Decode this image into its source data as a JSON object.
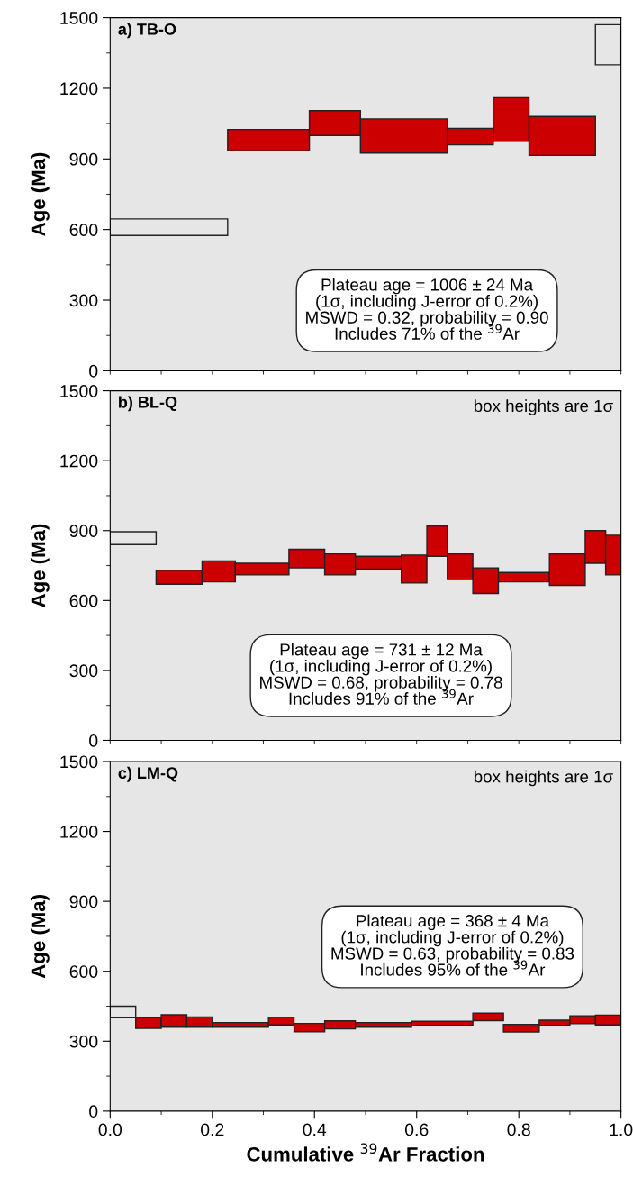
{
  "chart_data": [
    {
      "type": "histogram",
      "ylabel": "Age (Ma)",
      "annotations": [
        "a) TB-O",
        "Plateau age = 1006 ± 24 Ma\n(1σ, including J-error of 0.2%)\nMSWD = 0.32, probability = 0.90\nIncludes 71% of the $^{39}$Ar"
      ],
      "bins": [
        0,
        0.23,
        0.39,
        0.49,
        0.66,
        0.75,
        0.82,
        0.95,
        1.0
      ],
      "base": [
        575,
        935,
        1000,
        925,
        960,
        975,
        915,
        1300
      ],
      "values": [
        70,
        90,
        105,
        145,
        70,
        185,
        165,
        170
      ],
      "colors": [
        "#e6e6e6",
        "#cc0000",
        "#cc0000",
        "#cc0000",
        "#cc0000",
        "#cc0000",
        "#cc0000",
        "#e6e6e6"
      ],
      "xlim": [
        0,
        1.0
      ],
      "ylim": [
        0,
        1500
      ],
      "tick_labels": "y",
      "xticks": [
        {
          "value": 0,
          "label": null
        },
        {
          "value": 0.1,
          "label": null
        },
        {
          "value": 0.2,
          "label": null
        },
        {
          "value": 0.3,
          "label": null
        },
        {
          "value": 0.4,
          "label": null
        },
        {
          "value": 0.5,
          "label": null
        },
        {
          "value": 0.6,
          "label": null
        },
        {
          "value": 0.7,
          "label": null
        },
        {
          "value": 0.8,
          "label": null
        },
        {
          "value": 0.9,
          "label": null
        },
        {
          "value": 1.0,
          "label": null
        }
      ],
      "yticks": [
        0,
        {
          "value": 150,
          "label": null
        },
        300,
        {
          "value": 450,
          "label": null
        },
        600,
        {
          "value": 750,
          "label": null
        },
        900,
        {
          "value": 1050,
          "label": null
        },
        1200,
        {
          "value": 1350,
          "label": null
        },
        1500
      ]
    },
    {
      "type": "histogram",
      "ylabel": "Age (Ma)",
      "annotations": [
        "b) BL-Q",
        "box heights are 1σ",
        "Plateau age = 731 ± 12 Ma\n(1σ, including J-error of 0.2%)\nMSWD = 0.68, probability = 0.78\nIncludes 91% of the $^{39}$Ar"
      ],
      "bins": [
        0,
        0.09,
        0.18,
        0.245,
        0.35,
        0.42,
        0.48,
        0.57,
        0.62,
        0.66,
        0.71,
        0.76,
        0.86,
        0.93,
        0.97,
        1.0
      ],
      "base": [
        840,
        670,
        680,
        710,
        740,
        710,
        735,
        675,
        790,
        690,
        630,
        680,
        665,
        760,
        710
      ],
      "values": [
        55,
        60,
        90,
        50,
        80,
        90,
        55,
        120,
        130,
        110,
        110,
        40,
        135,
        140,
        170
      ],
      "colors": [
        "#e6e6e6",
        "#cc0000",
        "#cc0000",
        "#cc0000",
        "#cc0000",
        "#cc0000",
        "#cc0000",
        "#cc0000",
        "#cc0000",
        "#cc0000",
        "#cc0000",
        "#cc0000",
        "#cc0000",
        "#cc0000",
        "#cc0000"
      ],
      "xlim": [
        0,
        1.0
      ],
      "ylim": [
        0,
        1500
      ],
      "tick_labels": "y",
      "xticks": [
        {
          "value": 0,
          "label": null
        },
        {
          "value": 0.1,
          "label": null
        },
        {
          "value": 0.2,
          "label": null
        },
        {
          "value": 0.3,
          "label": null
        },
        {
          "value": 0.4,
          "label": null
        },
        {
          "value": 0.5,
          "label": null
        },
        {
          "value": 0.6,
          "label": null
        },
        {
          "value": 0.7,
          "label": null
        },
        {
          "value": 0.8,
          "label": null
        },
        {
          "value": 0.9,
          "label": null
        },
        {
          "value": 1.0,
          "label": null
        }
      ],
      "yticks": [
        0,
        {
          "value": 150,
          "label": null
        },
        300,
        {
          "value": 450,
          "label": null
        },
        600,
        {
          "value": 750,
          "label": null
        },
        900,
        {
          "value": 1050,
          "label": null
        },
        1200,
        {
          "value": 1350,
          "label": null
        },
        1500
      ]
    },
    {
      "type": "histogram",
      "ylabel": "Age (Ma)",
      "xlabel": "Cumulative $^{39}$Ar Fraction",
      "annotations": [
        "c) LM-Q",
        "box heights are 1σ",
        "Plateau age = 368 ± 4 Ma\n(1σ, including J-error of 0.2%)\nMSWD = 0.63, probability = 0.83\nIncludes 95% of the $^{39}$Ar"
      ],
      "bins": [
        0,
        0.05,
        0.1,
        0.15,
        0.2,
        0.31,
        0.36,
        0.42,
        0.48,
        0.59,
        0.71,
        0.77,
        0.84,
        0.9,
        0.95,
        1.0
      ],
      "base": [
        400,
        355,
        360,
        360,
        360,
        370,
        341,
        353,
        360,
        368,
        388,
        340,
        368,
        375,
        370
      ],
      "values": [
        50,
        45,
        53,
        44,
        20,
        33,
        35,
        34,
        20,
        17,
        32,
        32,
        22,
        34,
        42
      ],
      "colors": [
        "#e6e6e6",
        "#cc0000",
        "#cc0000",
        "#cc0000",
        "#cc0000",
        "#cc0000",
        "#cc0000",
        "#cc0000",
        "#cc0000",
        "#cc0000",
        "#cc0000",
        "#cc0000",
        "#cc0000",
        "#cc0000",
        "#cc0000"
      ],
      "xlim": [
        0,
        1.0
      ],
      "ylim": [
        0,
        1500
      ],
      "xticks": [
        {
          "value": 0,
          "label": "0.0"
        },
        {
          "value": 0.1,
          "label": null
        },
        {
          "value": 0.2,
          "label": "0.2"
        },
        {
          "value": 0.3,
          "label": null
        },
        {
          "value": 0.4,
          "label": "0.4"
        },
        {
          "value": 0.5,
          "label": null
        },
        {
          "value": 0.6,
          "label": "0.6"
        },
        {
          "value": 0.7,
          "label": null
        },
        {
          "value": 0.8,
          "label": "0.8"
        },
        {
          "value": 0.9,
          "label": null
        },
        {
          "value": 1.0,
          "label": "1.0"
        }
      ],
      "yticks": [
        0,
        {
          "value": 150,
          "label": null
        },
        300,
        {
          "value": 450,
          "label": null
        },
        600,
        {
          "value": 750,
          "label": null
        },
        900,
        {
          "value": 1050,
          "label": null
        },
        1200,
        {
          "value": 1350,
          "label": null
        },
        1500
      ]
    }
  ]
}
